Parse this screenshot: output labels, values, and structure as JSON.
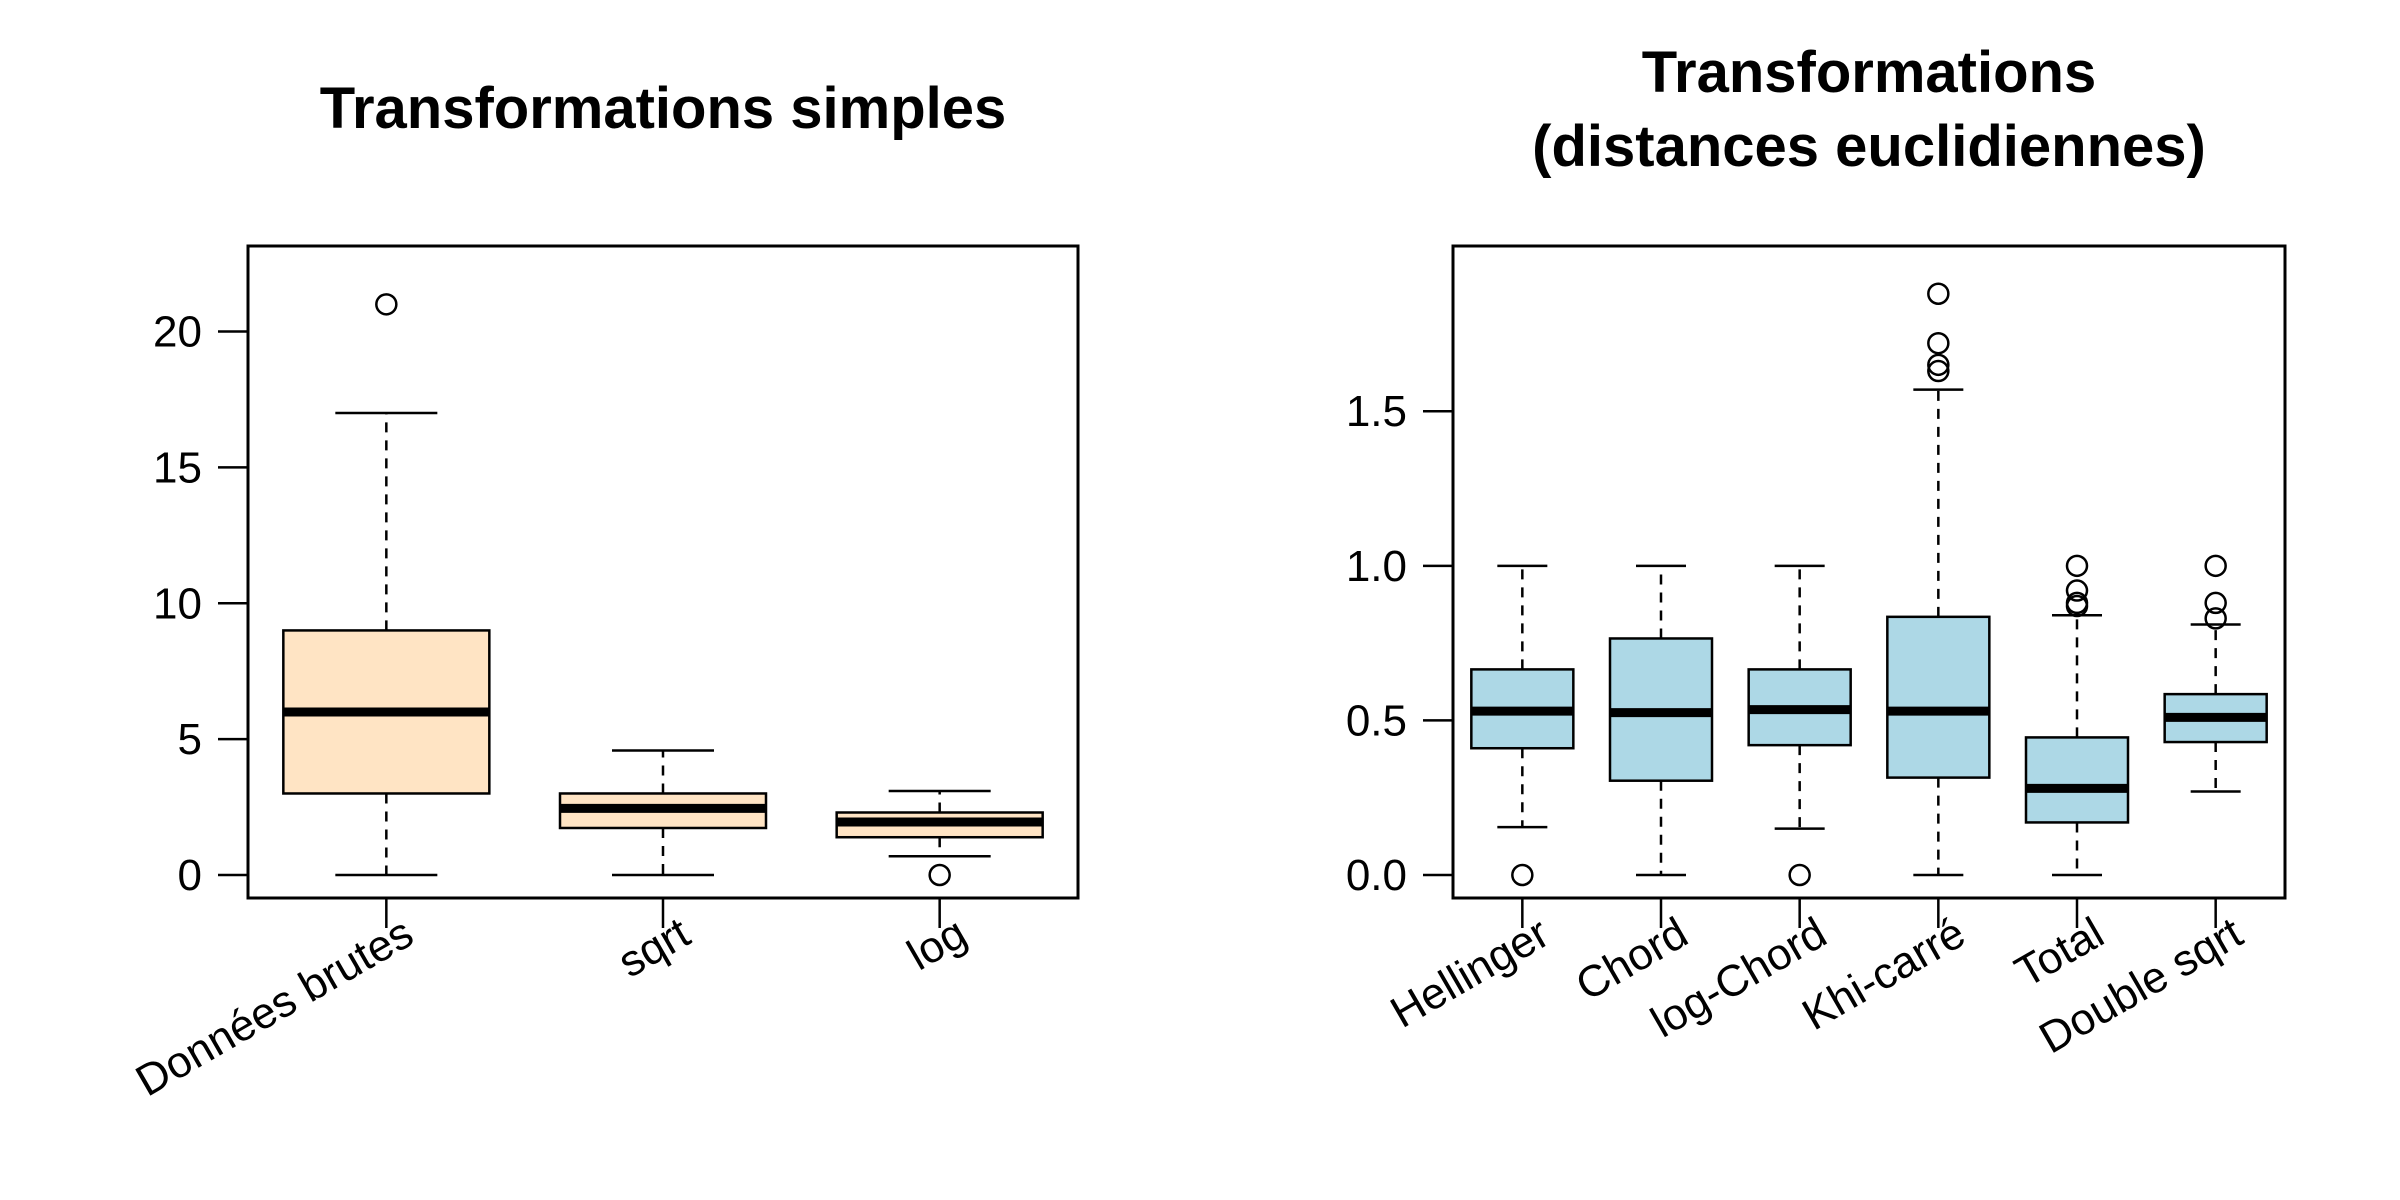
{
  "chart_data": [
    {
      "type": "boxplot",
      "title": "Transformations simples",
      "title_lines": [
        "Transformations simples"
      ],
      "box_color": "#FFE4C4",
      "ylim": [
        0,
        22.3
      ],
      "yticks": [
        0,
        5,
        10,
        15,
        20
      ],
      "ytick_labels": [
        "0",
        "5",
        "10",
        "15",
        "20"
      ],
      "categories": [
        "Données brutes",
        "sqrt",
        "log"
      ],
      "boxes": [
        {
          "label": "Données brutes",
          "whisker_low": 0,
          "q1": 3,
          "median": 6,
          "q3": 9,
          "whisker_high": 17,
          "outliers": [
            21
          ]
        },
        {
          "label": "sqrt",
          "whisker_low": 0,
          "q1": 1.73,
          "median": 2.45,
          "q3": 3.0,
          "whisker_high": 4.58,
          "outliers": []
        },
        {
          "label": "log",
          "whisker_low": 0.69,
          "q1": 1.39,
          "median": 1.95,
          "q3": 2.3,
          "whisker_high": 3.09,
          "outliers": [
            0
          ]
        }
      ]
    },
    {
      "type": "boxplot",
      "title": "Transformations (distances euclidiennes)",
      "title_lines": [
        "Transformations",
        "(distances euclidiennes)"
      ],
      "box_color": "#ADD8E6",
      "ylim": [
        0,
        1.96
      ],
      "yticks": [
        0,
        0.5,
        1.0,
        1.5
      ],
      "ytick_labels": [
        "0.0",
        "0.5",
        "1.0",
        "1.5"
      ],
      "categories": [
        "Hellinger",
        "Chord",
        "log-Chord",
        "Khi-carré",
        "Total",
        "Double sqrt"
      ],
      "boxes": [
        {
          "label": "Hellinger",
          "whisker_low": 0.155,
          "q1": 0.41,
          "median": 0.53,
          "q3": 0.665,
          "whisker_high": 1.0,
          "outliers": [
            0
          ]
        },
        {
          "label": "Chord",
          "whisker_low": 0,
          "q1": 0.305,
          "median": 0.525,
          "q3": 0.765,
          "whisker_high": 1.0,
          "outliers": []
        },
        {
          "label": "log-Chord",
          "whisker_low": 0.15,
          "q1": 0.42,
          "median": 0.535,
          "q3": 0.665,
          "whisker_high": 1.0,
          "outliers": [
            0
          ]
        },
        {
          "label": "Khi-carré",
          "whisker_low": 0,
          "q1": 0.315,
          "median": 0.53,
          "q3": 0.835,
          "whisker_high": 1.57,
          "outliers": [
            1.63,
            1.65,
            1.72,
            1.88
          ]
        },
        {
          "label": "Total",
          "whisker_low": 0,
          "q1": 0.17,
          "median": 0.28,
          "q3": 0.445,
          "whisker_high": 0.84,
          "outliers": [
            0.87,
            0.88,
            0.92,
            1.0
          ]
        },
        {
          "label": "Double sqrt",
          "whisker_low": 0.27,
          "q1": 0.43,
          "median": 0.51,
          "q3": 0.585,
          "whisker_high": 0.81,
          "outliers": [
            0.83,
            0.88,
            1.0
          ]
        }
      ]
    }
  ]
}
